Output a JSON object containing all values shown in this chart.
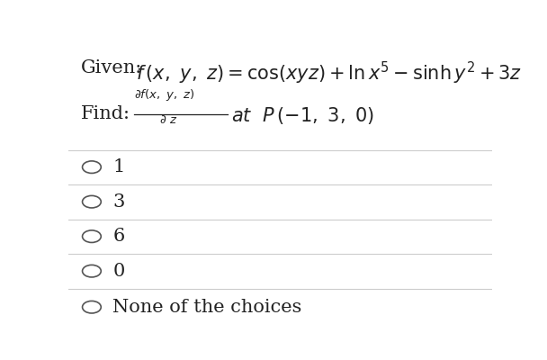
{
  "background_color": "#ffffff",
  "given_label": "Given:",
  "find_label": "Find:",
  "choices": [
    "1",
    "3",
    "6",
    "0",
    "None of the choices"
  ],
  "divider_color": "#cccccc",
  "text_color": "#222222",
  "circle_color": "#555555",
  "font_size_given": 15,
  "font_size_choices": 15
}
